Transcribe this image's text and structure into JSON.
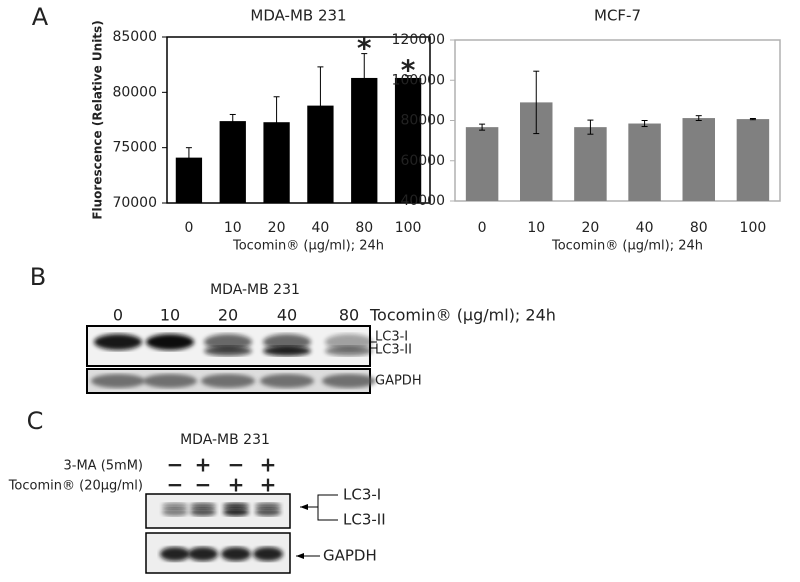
{
  "chart_data": [
    {
      "type": "bar",
      "panel": "A",
      "title": "MDA-MB 231",
      "y_label": "Fluorescence (Relative Units)",
      "x_label": "Tocomin® (µg/ml); 24h",
      "categories": [
        "0",
        "10",
        "20",
        "40",
        "80",
        "100"
      ],
      "values": [
        74100,
        77400,
        77300,
        78800,
        81300,
        81300
      ],
      "errors": [
        900,
        600,
        2300,
        3500,
        2200,
        200
      ],
      "color": "#000000",
      "frame_color": "#000000",
      "ylim": [
        70000,
        85000
      ],
      "yticks": [
        70000,
        75000,
        80000,
        85000
      ],
      "annotations": [
        {
          "text": "*",
          "category": "80"
        },
        {
          "text": "*",
          "category": "100"
        }
      ]
    },
    {
      "type": "bar",
      "title": "MCF-7",
      "x_label": "Tocomin® (µg/ml); 24h",
      "categories": [
        "0",
        "10",
        "20",
        "40",
        "80",
        "100"
      ],
      "values": [
        76700,
        89000,
        76700,
        78500,
        81200,
        80700
      ],
      "errors": [
        1500,
        15500,
        3500,
        1500,
        1200,
        300
      ],
      "color": "#808080",
      "frame_color": "#b0b0b0",
      "ylim": [
        40000,
        120000
      ],
      "yticks": [
        40000,
        60000,
        80000,
        100000,
        120000
      ]
    }
  ],
  "panel_b": {
    "panel": "B",
    "title": "MDA-MB 231",
    "lanes": [
      "0",
      "10",
      "20",
      "40",
      "80"
    ],
    "treatment": "Tocomin® (µg/ml); 24h",
    "labels": [
      "LC3-I",
      "LC3-II",
      "GAPDH"
    ]
  },
  "panel_c": {
    "panel": "C",
    "title": "MDA-MB 231",
    "rows": [
      {
        "label": "3-MA (5mM)",
        "signs": [
          "−",
          "+",
          "−",
          "+"
        ]
      },
      {
        "label": "Tocomin® (20µg/ml)",
        "signs": [
          "−",
          "−",
          "+",
          "+"
        ]
      }
    ],
    "labels": [
      "LC3-I",
      "LC3-II",
      "GAPDH"
    ]
  }
}
